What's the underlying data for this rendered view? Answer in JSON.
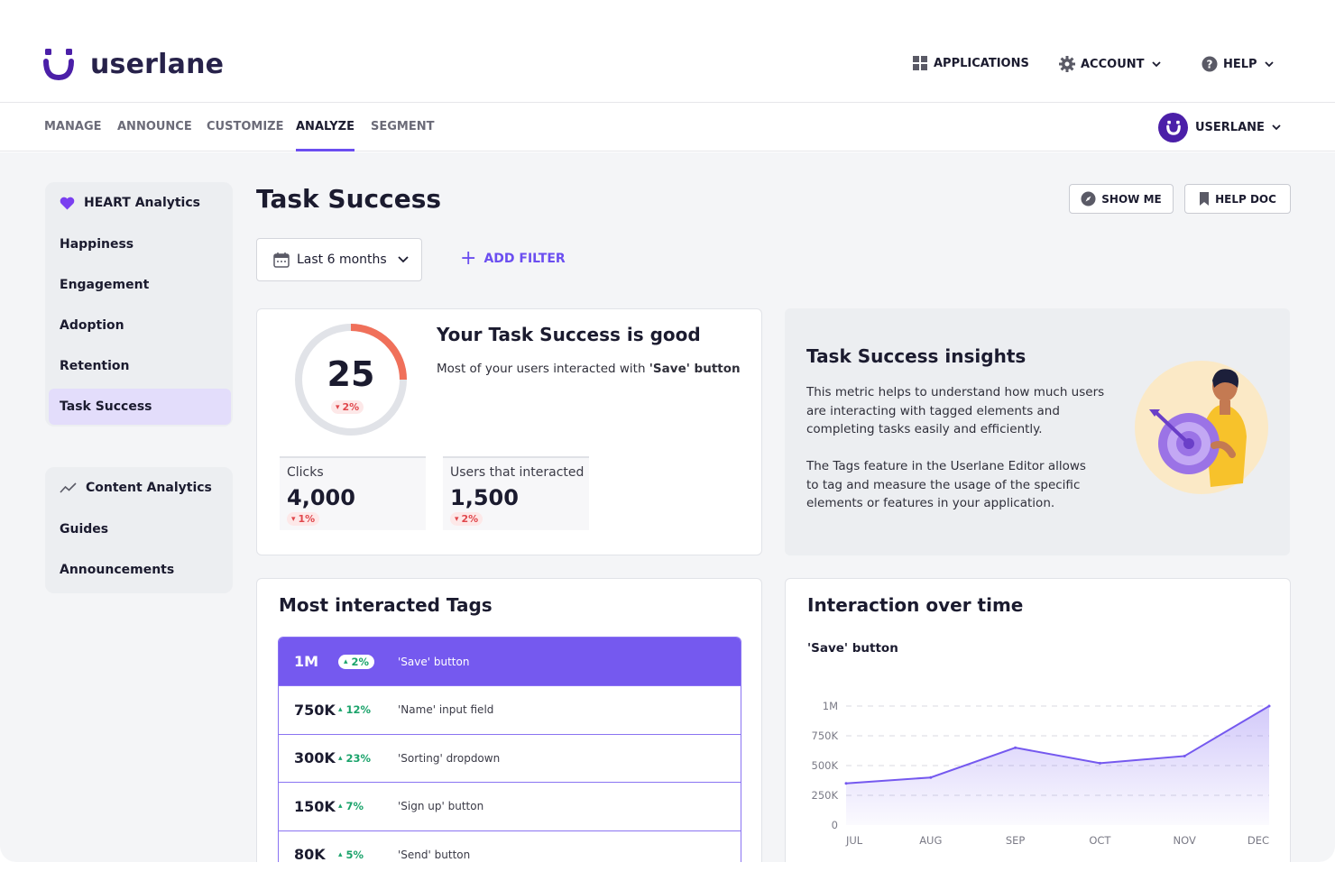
{
  "brand": {
    "name": "userlane",
    "accent": "#6b4ef0",
    "logo_color": "#4b1fa8"
  },
  "topnav": [
    {
      "label": "APPLICATIONS",
      "icon": "grid-icon",
      "dropdown": false
    },
    {
      "label": "ACCOUNT",
      "icon": "gear-icon",
      "dropdown": true
    },
    {
      "label": "HELP",
      "icon": "question-icon",
      "dropdown": true
    }
  ],
  "tabs": [
    {
      "label": "MANAGE",
      "active": false
    },
    {
      "label": "ANNOUNCE",
      "active": false
    },
    {
      "label": "CUSTOMIZE",
      "active": false
    },
    {
      "label": "ANALYZE",
      "active": true
    },
    {
      "label": "SEGMENT",
      "active": false
    }
  ],
  "workspace": {
    "label": "USERLANE"
  },
  "sidebar": {
    "heart": {
      "title": "HEART Analytics",
      "items": [
        "Happiness",
        "Engagement",
        "Adoption",
        "Retention",
        "Task Success"
      ],
      "active": "Task Success"
    },
    "content": {
      "title": "Content Analytics",
      "items": [
        "Guides",
        "Announcements"
      ]
    }
  },
  "page": {
    "title": "Task Success",
    "show_me": "SHOW ME",
    "help_doc": "HELP DOC",
    "date_range": "Last 6 months",
    "add_filter": "ADD FILTER"
  },
  "score": {
    "value": "25",
    "fill_percent": 25,
    "delta": "2%",
    "heading": "Your Task Success is good",
    "text_prefix": "Most of your users interacted with ",
    "text_bold": "'Save' button",
    "stats": [
      {
        "label": "Clicks",
        "value": "4,000",
        "delta": "1%"
      },
      {
        "label": "Users that interacted",
        "value": "1,500",
        "delta": "2%"
      }
    ]
  },
  "insights": {
    "title": "Task Success insights",
    "lines_1": [
      "This metric helps to understand how much users",
      "are interacting with tagged elements and",
      "completing tasks easily and efficiently."
    ],
    "lines_2": [
      "The Tags feature in the Userlane Editor allows",
      "to tag and measure the usage of the specific",
      "elements or features in your application."
    ]
  },
  "tags": {
    "title": "Most interacted Tags",
    "rows": [
      {
        "value": "1M",
        "delta": "2%",
        "name": "'Save' button"
      },
      {
        "value": "750K",
        "delta": "12%",
        "name": "'Name' input field"
      },
      {
        "value": "300K",
        "delta": "23%",
        "name": "'Sorting' dropdown"
      },
      {
        "value": "150K",
        "delta": "7%",
        "name": "'Sign up' button"
      },
      {
        "value": "80K",
        "delta": "5%",
        "name": "'Send' button"
      }
    ]
  },
  "interaction": {
    "title": "Interaction over time",
    "subtitle": "'Save' button"
  },
  "chart_data": {
    "type": "area",
    "title": "Interaction over time",
    "series": [
      {
        "name": "'Save' button",
        "values": [
          350000,
          400000,
          650000,
          520000,
          580000,
          1000000
        ]
      }
    ],
    "categories": [
      "JUL",
      "AUG",
      "SEP",
      "OCT",
      "NOV",
      "DEC"
    ],
    "y_ticks": [
      "0",
      "250K",
      "500K",
      "750K",
      "1M"
    ],
    "ylim": [
      0,
      1000000
    ],
    "grid": true,
    "line_color": "#7559ef"
  }
}
